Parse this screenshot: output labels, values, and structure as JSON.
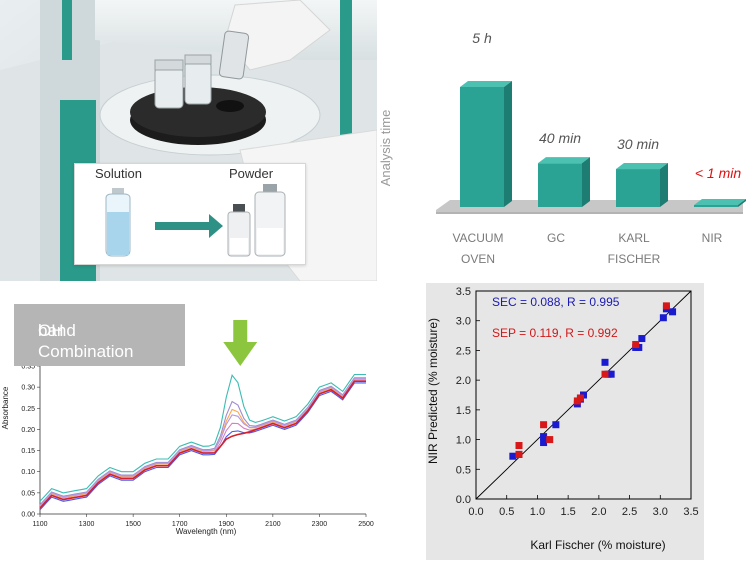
{
  "photo": {
    "inset_label_left": "Solution",
    "inset_label_right": "Powder",
    "colors": {
      "machine_green": "#2a9a8a",
      "arrow": "#2e9185",
      "vial_liquid": "#a8d4ec"
    }
  },
  "spectrum_badge": {
    "line1": "OH Combination",
    "line2": "band"
  },
  "chart_data": [
    {
      "type": "bar",
      "ylabel": "Analysis time",
      "categories": [
        [
          "VACUUM",
          "OVEN"
        ],
        [
          "GC"
        ],
        [
          "KARL",
          "FISCHER"
        ],
        [
          "NIR"
        ]
      ],
      "value_labels": [
        "5 h",
        "40 min",
        "30 min",
        "< 1 min"
      ],
      "values_minutes": [
        300,
        40,
        30,
        1
      ],
      "colors": {
        "bar": "#2aa394",
        "bar_top": "#4cc1b1",
        "bar_side": "#1d7d72",
        "floor": "#c7c7c7",
        "highlight_label": "#e01010",
        "value_label": "#555555"
      }
    },
    {
      "type": "line",
      "xlabel": "Wavelength (nm)",
      "ylabel": "Absorbance",
      "xlim": [
        1100,
        2500
      ],
      "ylim": [
        0.0,
        0.35
      ],
      "xticks": [
        "1100",
        "1300",
        "1500",
        "1700",
        "1900",
        "2100",
        "2300",
        "2500"
      ],
      "yticks": [
        "0.00",
        "0.05",
        "0.10",
        "0.15",
        "0.20",
        "0.25",
        "0.30",
        "0.35"
      ],
      "highlight_band": [
        1860,
        2060
      ],
      "highlight_label": "OH Combination band",
      "baseline": [
        [
          1100,
          0.01
        ],
        [
          1150,
          0.04
        ],
        [
          1200,
          0.03
        ],
        [
          1300,
          0.04
        ],
        [
          1350,
          0.07
        ],
        [
          1400,
          0.09
        ],
        [
          1450,
          0.08
        ],
        [
          1500,
          0.08
        ],
        [
          1550,
          0.1
        ],
        [
          1600,
          0.11
        ],
        [
          1650,
          0.11
        ],
        [
          1700,
          0.14
        ],
        [
          1750,
          0.15
        ],
        [
          1800,
          0.14
        ],
        [
          1850,
          0.14
        ],
        [
          1900,
          0.17
        ],
        [
          1950,
          0.18
        ],
        [
          2000,
          0.19
        ],
        [
          2050,
          0.2
        ],
        [
          2100,
          0.21
        ],
        [
          2150,
          0.2
        ],
        [
          2200,
          0.21
        ],
        [
          2250,
          0.24
        ],
        [
          2300,
          0.28
        ],
        [
          2350,
          0.29
        ],
        [
          2400,
          0.27
        ],
        [
          2450,
          0.31
        ],
        [
          2500,
          0.31
        ]
      ],
      "band_peak_absorbance": [
        0.305,
        0.25,
        0.235,
        0.22,
        0.205,
        0.19,
        0.175
      ],
      "series_colors": [
        "#3cbcb2",
        "#9e8ccf",
        "#ffa64d",
        "#b19be8",
        "#d87fbf",
        "#4a5ae8",
        "#d6202a"
      ],
      "series_offsets": [
        0.02,
        0.012,
        0.008,
        0.01,
        0.005,
        0.0,
        0.004
      ]
    },
    {
      "type": "scatter",
      "xlabel": "Karl Fischer (% moisture)",
      "ylabel": "NIR Predicted (% moisture)",
      "xlim": [
        0.0,
        3.5
      ],
      "ylim": [
        0.0,
        3.5
      ],
      "xticks": [
        "0.0",
        "0.5",
        "1.0",
        "1.5",
        "2.0",
        "2.5",
        "3.0",
        "3.5"
      ],
      "yticks": [
        "0.0",
        "0.5",
        "1.0",
        "1.5",
        "2.0",
        "2.5",
        "3.0",
        "3.5"
      ],
      "annotations": [
        {
          "text": "SEC = 0.088, R = 0.995",
          "color": "#1a1ab0"
        },
        {
          "text": "SEP = 0.119, R = 0.992",
          "color": "#d01818"
        }
      ],
      "series": [
        {
          "color": "#1a1ad0",
          "points": [
            [
              0.6,
              0.72
            ],
            [
              0.7,
              0.75
            ],
            [
              1.1,
              0.95
            ],
            [
              1.1,
              1.05
            ],
            [
              1.3,
              1.25
            ],
            [
              1.65,
              1.6
            ],
            [
              1.7,
              1.68
            ],
            [
              1.75,
              1.75
            ],
            [
              2.1,
              2.3
            ],
            [
              2.15,
              2.1
            ],
            [
              2.2,
              2.1
            ],
            [
              2.6,
              2.55
            ],
            [
              2.65,
              2.55
            ],
            [
              2.7,
              2.7
            ],
            [
              3.05,
              3.05
            ],
            [
              3.1,
              3.2
            ],
            [
              3.2,
              3.15
            ]
          ]
        },
        {
          "color": "#d81818",
          "points": [
            [
              0.7,
              0.9
            ],
            [
              0.7,
              0.75
            ],
            [
              1.1,
              1.25
            ],
            [
              1.2,
              1.0
            ],
            [
              1.65,
              1.65
            ],
            [
              1.7,
              1.7
            ],
            [
              2.1,
              2.1
            ],
            [
              2.6,
              2.6
            ],
            [
              3.1,
              3.25
            ]
          ]
        }
      ]
    }
  ]
}
